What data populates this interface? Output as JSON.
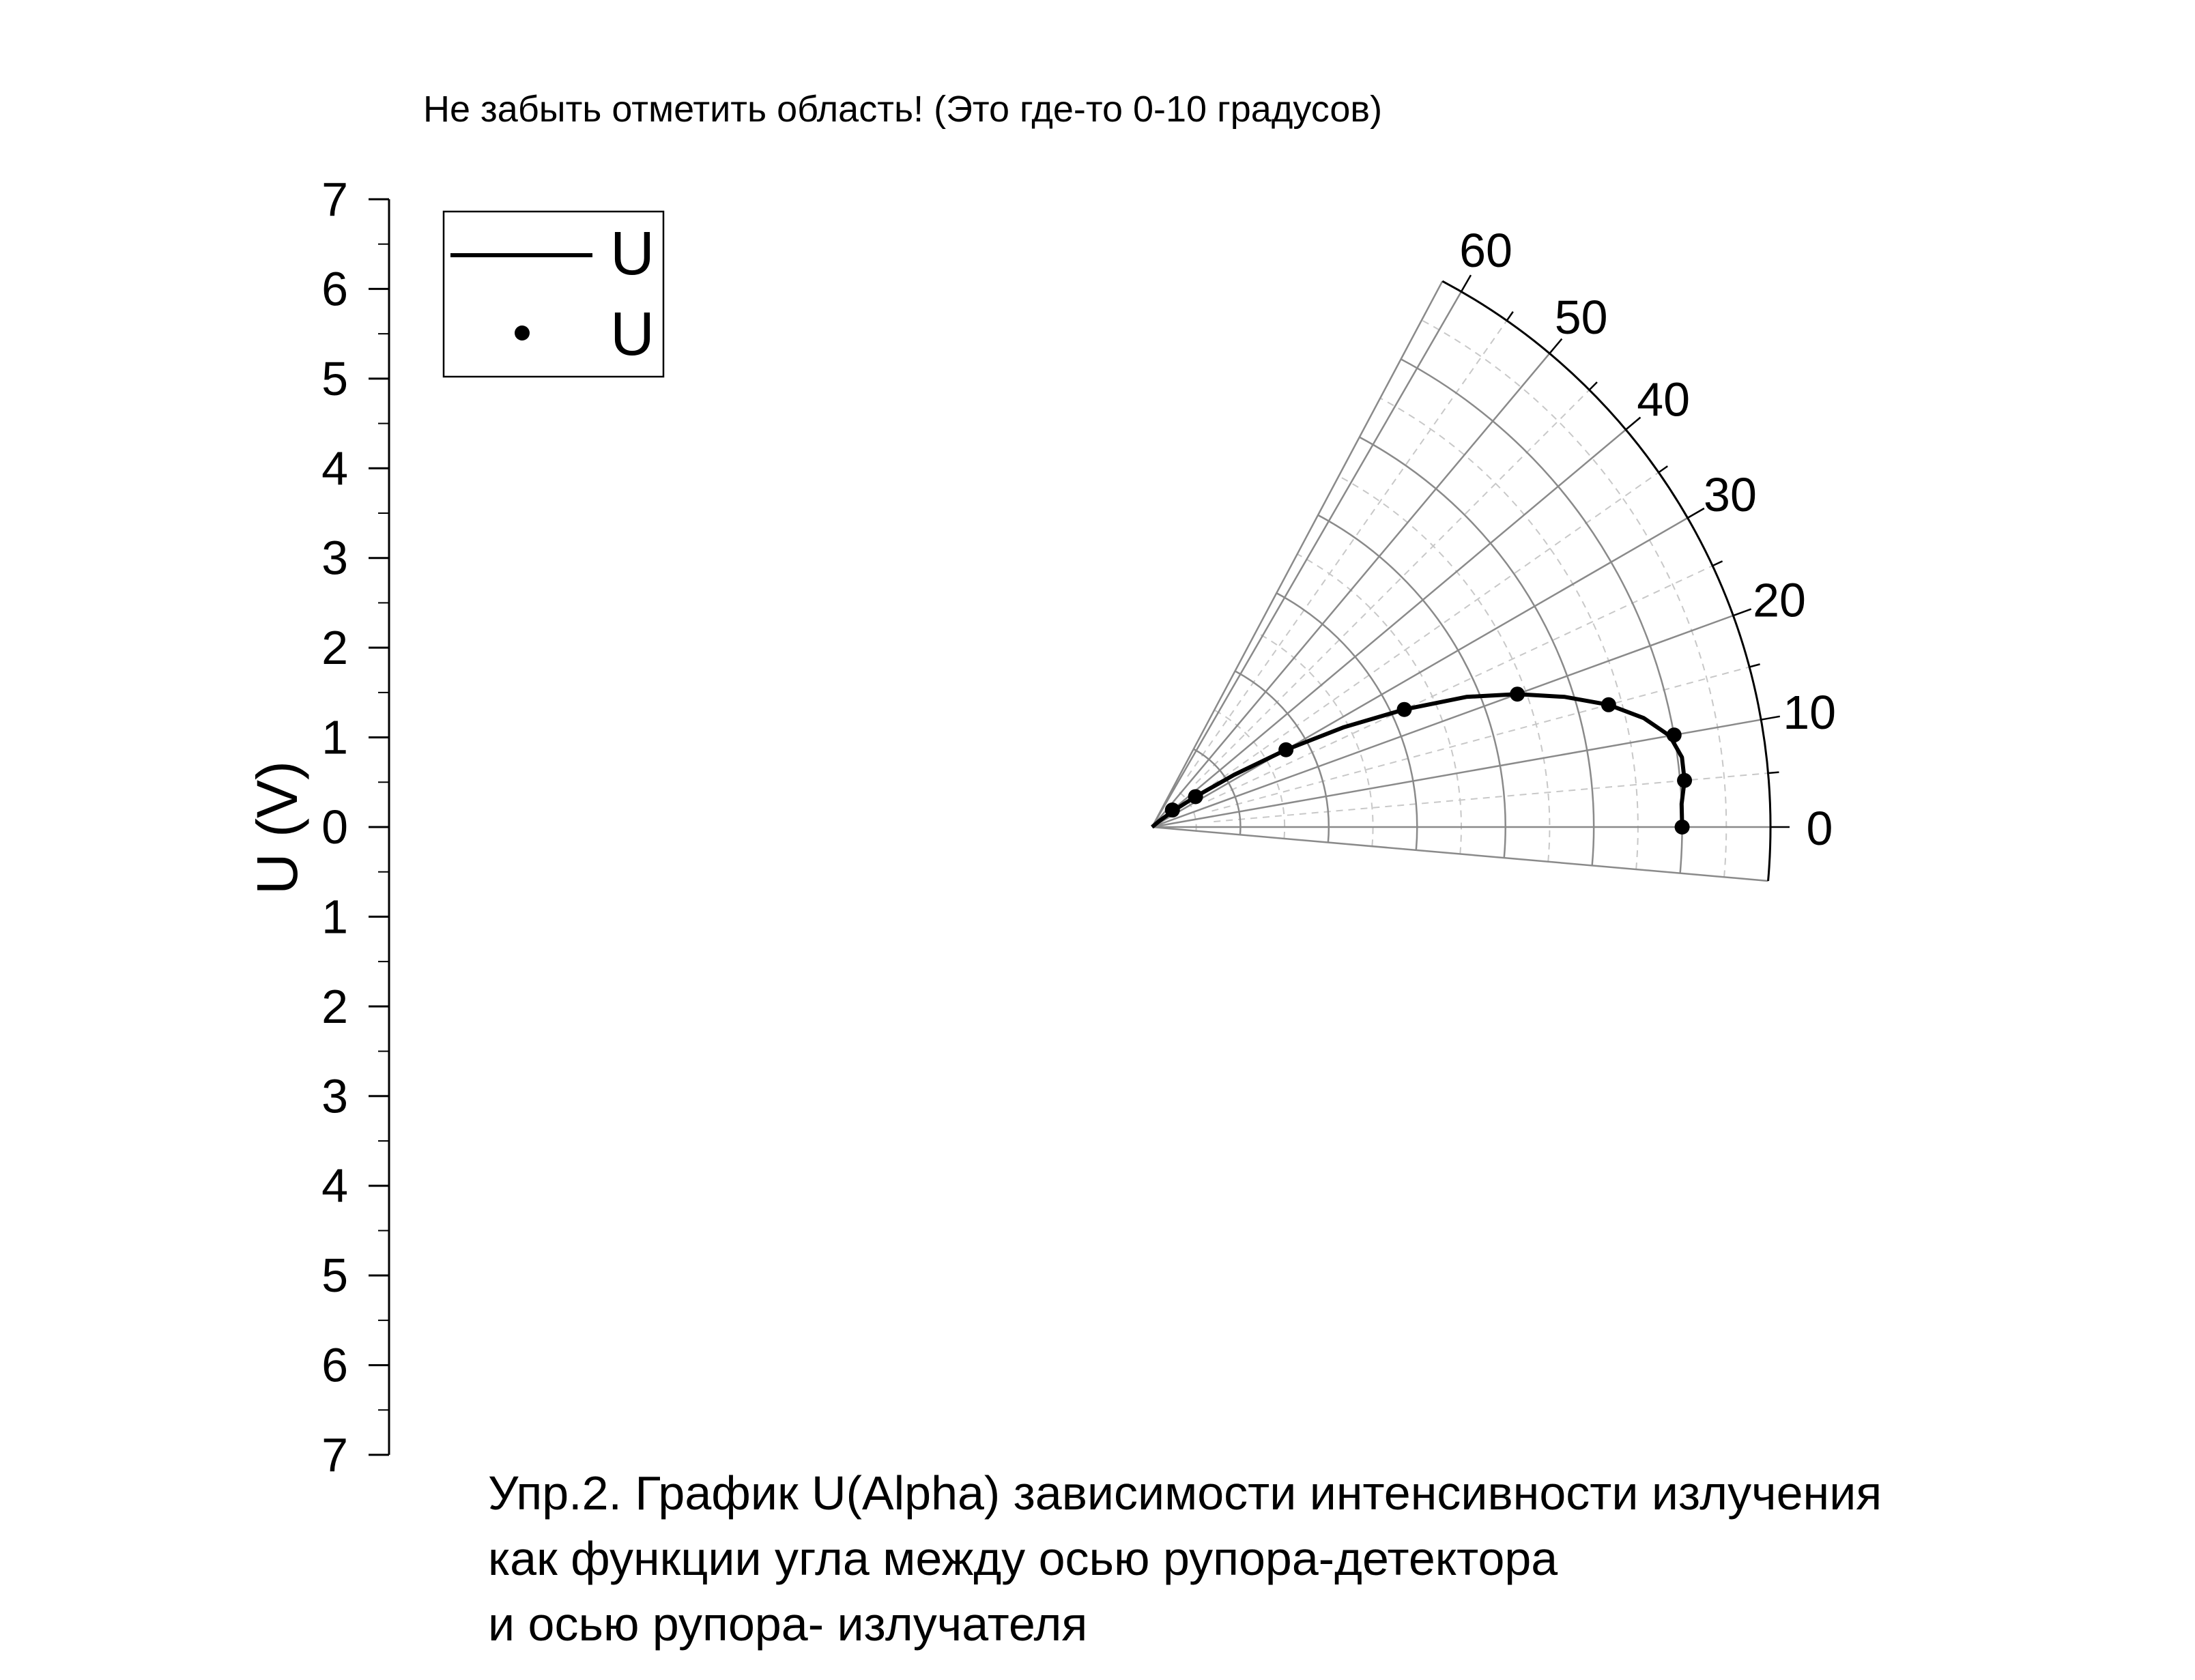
{
  "note_text": "Не забыть отметить область! (Это где-то 0-10 градусов)",
  "caption_lines": [
    "Упр.2. График U(Alpha) зависимости интенсивности излучения",
    "как функции угла между осью рупора-детектора",
    "и осью рупора- излучателя"
  ],
  "chart_data": {
    "type": "scatter",
    "subtype": "polar",
    "ylabel": "U (V)",
    "radial_ticks": [
      "7",
      "6",
      "5",
      "4",
      "3",
      "2",
      "1",
      "0",
      "1",
      "2",
      "3",
      "4",
      "5",
      "6",
      "7"
    ],
    "radial_range": [
      0,
      7
    ],
    "angle_range_deg": [
      -5,
      62
    ],
    "angle_tick_labels": [
      "0",
      "10",
      "20",
      "30",
      "40",
      "50",
      "60"
    ],
    "angle_ticks_deg": [
      0,
      10,
      20,
      30,
      40,
      50,
      60
    ],
    "grid": true,
    "legend_position": "top-left",
    "series": [
      {
        "name": "U",
        "style": "line",
        "points": [
          {
            "alpha": 0,
            "u": 6.0
          },
          {
            "alpha": 2.5,
            "u": 6.0
          },
          {
            "alpha": 5,
            "u": 6.05
          },
          {
            "alpha": 7.5,
            "u": 6.05
          },
          {
            "alpha": 10,
            "u": 5.95
          },
          {
            "alpha": 12.5,
            "u": 5.7
          },
          {
            "alpha": 15,
            "u": 5.35
          },
          {
            "alpha": 17.5,
            "u": 4.9
          },
          {
            "alpha": 20,
            "u": 4.4
          },
          {
            "alpha": 22.5,
            "u": 3.85
          },
          {
            "alpha": 25,
            "u": 3.15
          },
          {
            "alpha": 27.5,
            "u": 2.45
          },
          {
            "alpha": 30,
            "u": 1.75
          },
          {
            "alpha": 32.5,
            "u": 1.1
          },
          {
            "alpha": 35,
            "u": 0.6
          },
          {
            "alpha": 37.5,
            "u": 0.3
          },
          {
            "alpha": 40,
            "u": 0.1
          },
          {
            "alpha": 42.5,
            "u": 0.0
          }
        ]
      },
      {
        "name": "U",
        "style": "points",
        "points": [
          {
            "alpha": 0,
            "u": 6.0
          },
          {
            "alpha": 5,
            "u": 6.05
          },
          {
            "alpha": 10,
            "u": 6.0
          },
          {
            "alpha": 15,
            "u": 5.35
          },
          {
            "alpha": 20,
            "u": 4.4
          },
          {
            "alpha": 25,
            "u": 3.15
          },
          {
            "alpha": 30,
            "u": 1.75
          },
          {
            "alpha": 35,
            "u": 0.6
          },
          {
            "alpha": 40,
            "u": 0.3
          }
        ]
      }
    ]
  }
}
